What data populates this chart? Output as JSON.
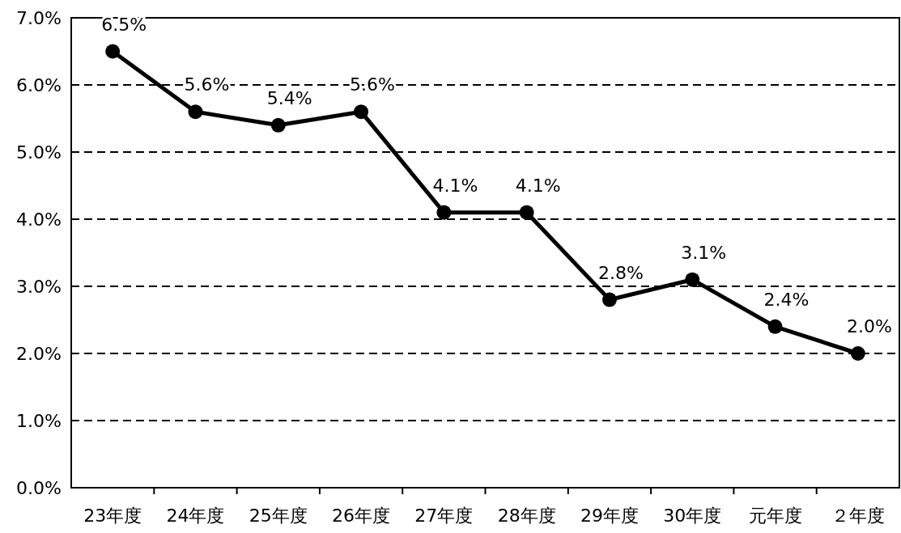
{
  "chart_data": {
    "type": "line",
    "categories": [
      "23年度",
      "24年度",
      "25年度",
      "26年度",
      "27年度",
      "28年度",
      "29年度",
      "30年度",
      "元年度",
      "２年度"
    ],
    "series": [
      {
        "color": "#000000",
        "values": [
          6.5,
          5.6,
          5.4,
          5.6,
          4.1,
          4.1,
          2.8,
          3.1,
          2.4,
          2.0
        ],
        "value_labels": [
          "6.5%",
          "5.6%",
          "5.4%",
          "5.6%",
          "4.1%",
          "4.1%",
          "2.8%",
          "3.1%",
          "2.4%",
          "2.0%"
        ]
      }
    ],
    "ylim": [
      0,
      7
    ],
    "yticks": [
      {
        "value": 0,
        "label": "0.0%"
      },
      {
        "value": 1,
        "label": "1.0%"
      },
      {
        "value": 2,
        "label": "2.0%"
      },
      {
        "value": 3,
        "label": "3.0%"
      },
      {
        "value": 4,
        "label": "4.0%"
      },
      {
        "value": 5,
        "label": "5.0%"
      },
      {
        "value": 6,
        "label": "6.0%"
      },
      {
        "value": 7,
        "label": "7.0%"
      }
    ],
    "grid": "y",
    "marker": "circle",
    "line_style": "solid"
  }
}
